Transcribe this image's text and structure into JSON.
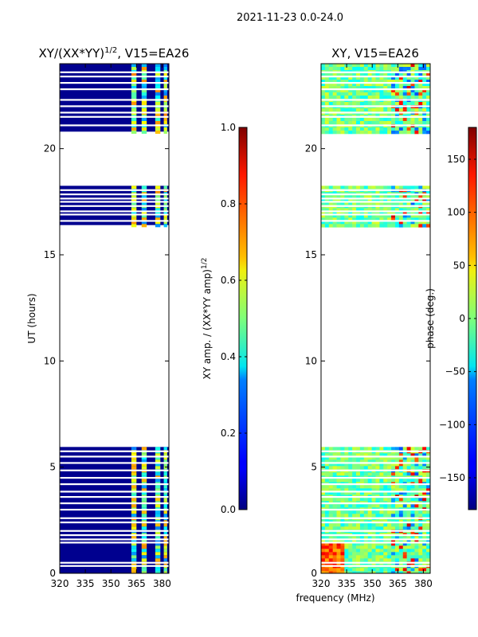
{
  "suptitle": "2021-11-23 0.0-24.0",
  "chart_data": [
    {
      "type": "heatmap",
      "title_main": "XY/(XX*YY)",
      "title_sup": "1/2",
      "title_tail": ", V15=EA26",
      "xlabel": "",
      "ylabel": "UT (hours)",
      "xlim": [
        320,
        384
      ],
      "ylim": [
        0,
        24
      ],
      "xticks": [
        320,
        335,
        350,
        365,
        380
      ],
      "yticks": [
        0,
        5,
        10,
        15,
        20
      ],
      "data_hours": [
        [
          0,
          5.95
        ],
        [
          16.4,
          18.25
        ],
        [
          20.8,
          24
        ]
      ],
      "gaps_hours": [
        0.35,
        0.5,
        1.45,
        1.6,
        1.8,
        2.0,
        2.4,
        2.6,
        3.0,
        3.3,
        3.6,
        3.85,
        4.2,
        4.5,
        4.85,
        5.2,
        5.5,
        5.75,
        16.6,
        16.9,
        17.05,
        17.3,
        17.5,
        17.65,
        17.85,
        18.05,
        21.1,
        21.5,
        21.7,
        22.0,
        22.3,
        22.8,
        23.1,
        23.4,
        23.6
      ],
      "bright_freq_bands_mhz": [
        [
          362,
          365
        ],
        [
          368,
          371
        ],
        [
          376,
          379
        ],
        [
          381,
          383
        ]
      ],
      "colorbar": {
        "label_main": "XY amp. / (XX*YY amp)",
        "label_sup": "1/2",
        "range": [
          0.0,
          1.0
        ],
        "ticks": [
          "0.0",
          "0.2",
          "0.4",
          "0.6",
          "0.8",
          "1.0"
        ]
      }
    },
    {
      "type": "heatmap",
      "title": "XY, V15=EA26",
      "xlabel": "frequency (MHz)",
      "ylabel": "",
      "xlim": [
        320,
        384
      ],
      "ylim": [
        0,
        24
      ],
      "xticks": [
        320,
        335,
        350,
        365,
        380
      ],
      "yticks": [
        0,
        5,
        10,
        15,
        20
      ],
      "data_hours": [
        [
          0,
          5.95
        ],
        [
          16.4,
          18.25
        ],
        [
          20.8,
          24
        ]
      ],
      "colorbar": {
        "label": "phase (deg.)",
        "range": [
          -180,
          180
        ],
        "ticks": [
          "−150",
          "−100",
          "−50",
          "0",
          "50",
          "100",
          "150"
        ]
      }
    }
  ]
}
